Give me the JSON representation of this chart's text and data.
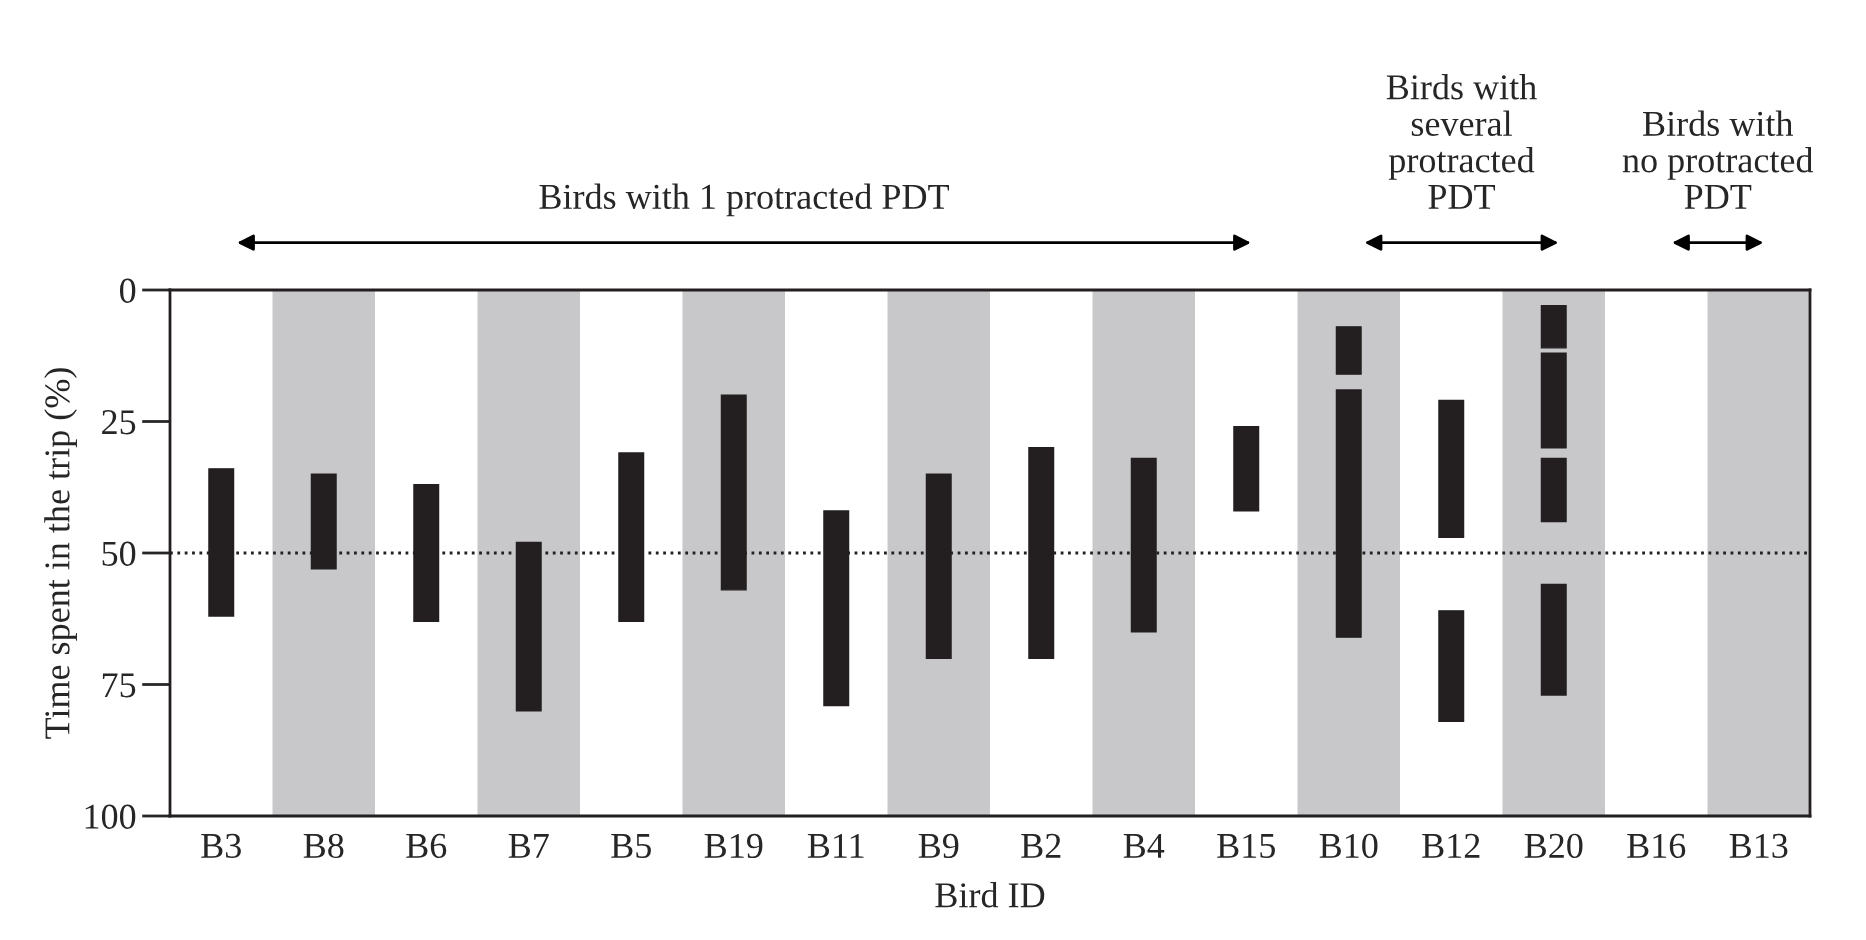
{
  "chart_data": {
    "type": "bar",
    "xlabel": "Bird ID",
    "ylabel": "Time spent in the trip (%)",
    "categories": [
      "B3",
      "B8",
      "B6",
      "B7",
      "B5",
      "B19",
      "B11",
      "B9",
      "B2",
      "B4",
      "B15",
      "B10",
      "B12",
      "B20",
      "B16",
      "B13"
    ],
    "series": [
      {
        "color": "#231f20",
        "base": [
          34,
          35,
          37,
          48,
          31,
          20,
          42,
          35,
          30,
          32,
          26,
          7,
          21,
          3,
          null,
          null
        ],
        "values": [
          28,
          18,
          26,
          32,
          32,
          37,
          37,
          35,
          40,
          33,
          16,
          9,
          26,
          8,
          null,
          null
        ]
      },
      {
        "color": "#231f20",
        "base": [
          null,
          null,
          null,
          null,
          null,
          null,
          null,
          null,
          null,
          null,
          null,
          19,
          61,
          12,
          null,
          null
        ],
        "values": [
          null,
          null,
          null,
          null,
          null,
          null,
          null,
          null,
          null,
          null,
          null,
          47,
          21,
          18,
          null,
          null
        ]
      },
      {
        "color": "#231f20",
        "base": [
          null,
          null,
          null,
          null,
          null,
          null,
          null,
          null,
          null,
          null,
          null,
          null,
          null,
          32,
          null,
          null
        ],
        "values": [
          null,
          null,
          null,
          null,
          null,
          null,
          null,
          null,
          null,
          null,
          null,
          null,
          null,
          12,
          null,
          null
        ]
      },
      {
        "color": "#231f20",
        "base": [
          null,
          null,
          null,
          null,
          null,
          null,
          null,
          null,
          null,
          null,
          null,
          null,
          null,
          56,
          null,
          null
        ],
        "values": [
          null,
          null,
          null,
          null,
          null,
          null,
          null,
          null,
          null,
          null,
          null,
          null,
          null,
          21,
          null,
          null
        ]
      }
    ],
    "ylim": [
      100,
      0
    ],
    "yticks": [
      0,
      25,
      50,
      75,
      100
    ],
    "grid": false,
    "ref_lines": [
      {
        "axis": "y",
        "value": 50,
        "color": "#231f20",
        "line_style": "dotted"
      }
    ],
    "bands": [
      {
        "axis": "x",
        "from": "B8",
        "to": "B8",
        "color": "#c8c8ca"
      },
      {
        "axis": "x",
        "from": "B7",
        "to": "B7",
        "color": "#c8c8ca"
      },
      {
        "axis": "x",
        "from": "B19",
        "to": "B19",
        "color": "#c8c8ca"
      },
      {
        "axis": "x",
        "from": "B9",
        "to": "B9",
        "color": "#c8c8ca"
      },
      {
        "axis": "x",
        "from": "B4",
        "to": "B4",
        "color": "#c8c8ca"
      },
      {
        "axis": "x",
        "from": "B10",
        "to": "B10",
        "color": "#c8c8ca"
      },
      {
        "axis": "x",
        "from": "B20",
        "to": "B20",
        "color": "#c8c8ca"
      },
      {
        "axis": "x",
        "from": "B13",
        "to": "B13",
        "color": "#c8c8ca"
      }
    ],
    "annotations": [
      "Birds with 1 protracted PDT",
      "Birds with\nseveral\nprotracted\nPDT",
      "Birds with\nno protracted\nPDT"
    ]
  }
}
